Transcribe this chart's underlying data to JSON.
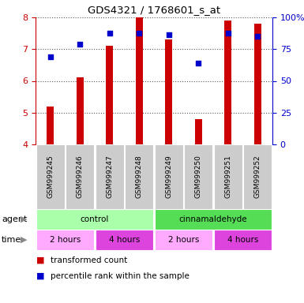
{
  "title": "GDS4321 / 1768601_s_at",
  "samples": [
    "GSM999245",
    "GSM999246",
    "GSM999247",
    "GSM999248",
    "GSM999249",
    "GSM999250",
    "GSM999251",
    "GSM999252"
  ],
  "bar_values": [
    5.2,
    6.1,
    7.1,
    8.0,
    7.3,
    4.8,
    7.9,
    7.8
  ],
  "bar_bottom": 4.0,
  "percentile_values": [
    6.75,
    7.15,
    7.5,
    7.5,
    7.45,
    6.55,
    7.5,
    7.4
  ],
  "bar_color": "#cc0000",
  "dot_color": "#0000cc",
  "ylim": [
    4.0,
    8.0
  ],
  "y_ticks_left": [
    4,
    5,
    6,
    7,
    8
  ],
  "y_ticks_right": [
    0,
    25,
    50,
    75,
    100
  ],
  "y_ticks_right_vals": [
    4.0,
    5.0,
    6.0,
    7.0,
    8.0
  ],
  "agent_data": [
    {
      "text": "control",
      "start": 0,
      "end": 3,
      "color": "#aaffaa"
    },
    {
      "text": "cinnamaldehyde",
      "start": 4,
      "end": 7,
      "color": "#55dd55"
    }
  ],
  "time_data": [
    {
      "text": "2 hours",
      "start": 0,
      "end": 1,
      "color": "#ffaaff"
    },
    {
      "text": "4 hours",
      "start": 2,
      "end": 3,
      "color": "#dd44dd"
    },
    {
      "text": "2 hours",
      "start": 4,
      "end": 5,
      "color": "#ffaaff"
    },
    {
      "text": "4 hours",
      "start": 6,
      "end": 7,
      "color": "#dd44dd"
    }
  ],
  "legend_bar_label": "transformed count",
  "legend_dot_label": "percentile rank within the sample",
  "bg_color": "#ffffff",
  "sample_bg_color": "#cccccc",
  "bar_width": 0.25
}
